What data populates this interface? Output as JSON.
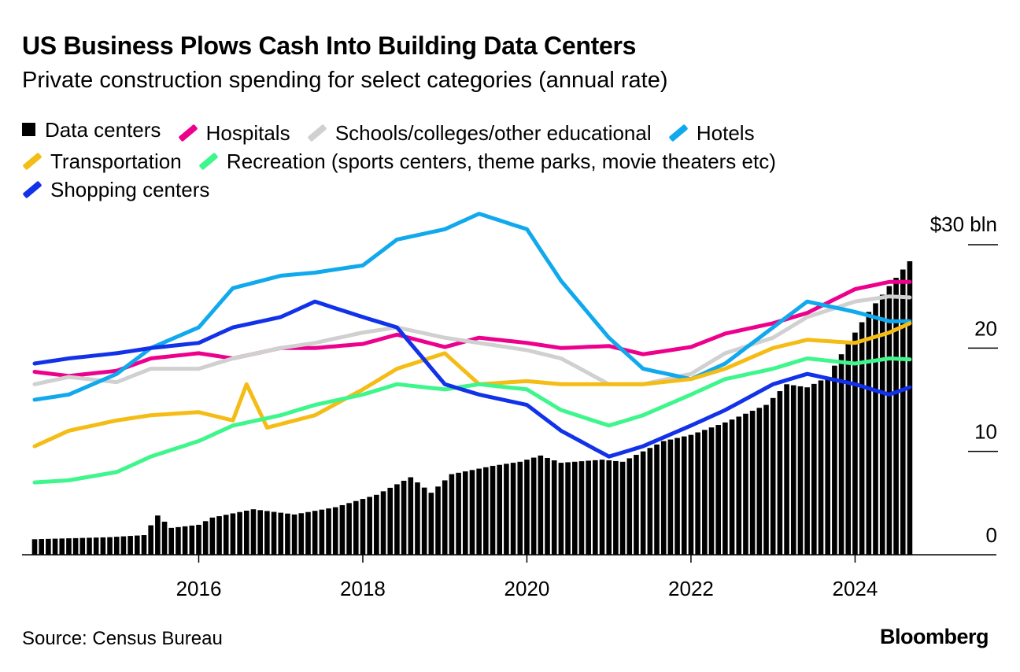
{
  "header": {
    "title": "US Business Plows Cash Into Building Data Centers",
    "subtitle": "Private construction spending for select categories (annual rate)"
  },
  "footer": {
    "source": "Source: Census Bureau",
    "brand": "Bloomberg"
  },
  "chart_data": {
    "type": "bar+line",
    "title": "US Business Plows Cash Into Building Data Centers",
    "subtitle": "Private construction spending for select categories (annual rate)",
    "ylabel_top": "$30 bln",
    "ylim": [
      0,
      30
    ],
    "y_ticks": [
      0,
      10,
      20
    ],
    "xlim": [
      "2014-01",
      "2024-12"
    ],
    "x_ticks": [
      "2016",
      "2018",
      "2020",
      "2022",
      "2024"
    ],
    "grid": false,
    "legend_position": "top-left",
    "bar_series": {
      "name": "Data centers",
      "color": "#000000",
      "anchors": [
        [
          "2014-01",
          1.5
        ],
        [
          "2014-12",
          1.7
        ],
        [
          "2015-05",
          1.9
        ],
        [
          "2015-07",
          3.8
        ],
        [
          "2015-09",
          2.6
        ],
        [
          "2016-01",
          2.9
        ],
        [
          "2016-03",
          3.6
        ],
        [
          "2016-09",
          4.4
        ],
        [
          "2017-03",
          3.9
        ],
        [
          "2017-09",
          4.6
        ],
        [
          "2018-03",
          5.8
        ],
        [
          "2018-08",
          7.5
        ],
        [
          "2018-11",
          6.0
        ],
        [
          "2019-02",
          7.8
        ],
        [
          "2019-08",
          8.6
        ],
        [
          "2019-12",
          9.0
        ],
        [
          "2020-03",
          9.6
        ],
        [
          "2020-06",
          8.9
        ],
        [
          "2020-12",
          9.2
        ],
        [
          "2021-03",
          9.0
        ],
        [
          "2021-06",
          10.0
        ],
        [
          "2021-09",
          11.0
        ],
        [
          "2022-01",
          11.6
        ],
        [
          "2022-06",
          12.8
        ],
        [
          "2022-12",
          14.5
        ],
        [
          "2023-03",
          16.5
        ],
        [
          "2023-06",
          16.2
        ],
        [
          "2023-09",
          17.2
        ],
        [
          "2023-12",
          20.5
        ],
        [
          "2024-03",
          23.5
        ],
        [
          "2024-06",
          26.0
        ],
        [
          "2024-09",
          28.4
        ]
      ]
    },
    "series": [
      {
        "name": "Hospitals",
        "color": "#ed008c",
        "anchors": [
          [
            "2014-01",
            17.7
          ],
          [
            "2014-06",
            17.3
          ],
          [
            "2015-01",
            17.8
          ],
          [
            "2015-06",
            19.0
          ],
          [
            "2016-01",
            19.5
          ],
          [
            "2016-06",
            19.0
          ],
          [
            "2017-01",
            20.0
          ],
          [
            "2017-06",
            20.0
          ],
          [
            "2018-01",
            20.4
          ],
          [
            "2018-06",
            21.3
          ],
          [
            "2019-01",
            20.1
          ],
          [
            "2019-06",
            21.0
          ],
          [
            "2020-01",
            20.5
          ],
          [
            "2020-06",
            20.0
          ],
          [
            "2021-01",
            20.2
          ],
          [
            "2021-06",
            19.4
          ],
          [
            "2022-01",
            20.1
          ],
          [
            "2022-06",
            21.4
          ],
          [
            "2023-01",
            22.4
          ],
          [
            "2023-06",
            23.4
          ],
          [
            "2024-01",
            25.7
          ],
          [
            "2024-06",
            26.4
          ],
          [
            "2024-09",
            26.4
          ]
        ]
      },
      {
        "name": "Schools/colleges/other educational",
        "color": "#d0d0d0",
        "anchors": [
          [
            "2014-01",
            16.5
          ],
          [
            "2014-06",
            17.2
          ],
          [
            "2015-01",
            16.7
          ],
          [
            "2015-06",
            18.0
          ],
          [
            "2016-01",
            18.0
          ],
          [
            "2016-06",
            19.0
          ],
          [
            "2017-01",
            20.0
          ],
          [
            "2017-06",
            20.5
          ],
          [
            "2018-01",
            21.5
          ],
          [
            "2018-06",
            22.0
          ],
          [
            "2019-01",
            21.0
          ],
          [
            "2019-06",
            20.5
          ],
          [
            "2020-01",
            19.8
          ],
          [
            "2020-06",
            19.0
          ],
          [
            "2021-01",
            16.5
          ],
          [
            "2021-06",
            16.5
          ],
          [
            "2022-01",
            17.5
          ],
          [
            "2022-06",
            19.5
          ],
          [
            "2023-01",
            21.0
          ],
          [
            "2023-06",
            23.0
          ],
          [
            "2024-01",
            24.5
          ],
          [
            "2024-06",
            25.0
          ],
          [
            "2024-09",
            24.9
          ]
        ]
      },
      {
        "name": "Hotels",
        "color": "#11a9ed",
        "anchors": [
          [
            "2014-01",
            15.0
          ],
          [
            "2014-06",
            15.5
          ],
          [
            "2015-01",
            17.5
          ],
          [
            "2015-06",
            20.0
          ],
          [
            "2016-01",
            22.0
          ],
          [
            "2016-06",
            25.8
          ],
          [
            "2017-01",
            27.0
          ],
          [
            "2017-06",
            27.3
          ],
          [
            "2018-01",
            28.0
          ],
          [
            "2018-06",
            30.5
          ],
          [
            "2019-01",
            31.5
          ],
          [
            "2019-06",
            33.0
          ],
          [
            "2020-01",
            31.5
          ],
          [
            "2020-06",
            26.5
          ],
          [
            "2021-01",
            21.0
          ],
          [
            "2021-06",
            18.0
          ],
          [
            "2022-01",
            17.0
          ],
          [
            "2022-06",
            18.5
          ],
          [
            "2023-01",
            22.0
          ],
          [
            "2023-06",
            24.5
          ],
          [
            "2024-01",
            23.5
          ],
          [
            "2024-06",
            22.6
          ],
          [
            "2024-09",
            22.6
          ]
        ]
      },
      {
        "name": "Transportation",
        "color": "#f4bc15",
        "anchors": [
          [
            "2014-01",
            10.5
          ],
          [
            "2014-06",
            12.0
          ],
          [
            "2015-01",
            13.0
          ],
          [
            "2015-06",
            13.5
          ],
          [
            "2016-01",
            13.8
          ],
          [
            "2016-06",
            13.0
          ],
          [
            "2016-08",
            16.5
          ],
          [
            "2016-11",
            12.3
          ],
          [
            "2017-06",
            13.5
          ],
          [
            "2018-01",
            16.0
          ],
          [
            "2018-06",
            18.0
          ],
          [
            "2019-01",
            19.5
          ],
          [
            "2019-06",
            16.5
          ],
          [
            "2020-01",
            16.8
          ],
          [
            "2020-06",
            16.5
          ],
          [
            "2021-01",
            16.5
          ],
          [
            "2021-06",
            16.5
          ],
          [
            "2022-01",
            17.0
          ],
          [
            "2022-06",
            18.0
          ],
          [
            "2023-01",
            20.0
          ],
          [
            "2023-06",
            20.8
          ],
          [
            "2024-01",
            20.5
          ],
          [
            "2024-06",
            21.5
          ],
          [
            "2024-09",
            22.4
          ]
        ]
      },
      {
        "name": "Recreation (sports centers, theme parks, movie theaters etc)",
        "color": "#3ef68c",
        "anchors": [
          [
            "2014-01",
            7.0
          ],
          [
            "2014-06",
            7.2
          ],
          [
            "2015-01",
            8.0
          ],
          [
            "2015-06",
            9.5
          ],
          [
            "2016-01",
            11.0
          ],
          [
            "2016-06",
            12.5
          ],
          [
            "2017-01",
            13.5
          ],
          [
            "2017-06",
            14.5
          ],
          [
            "2018-01",
            15.5
          ],
          [
            "2018-06",
            16.5
          ],
          [
            "2019-01",
            16.0
          ],
          [
            "2019-06",
            16.5
          ],
          [
            "2020-01",
            16.0
          ],
          [
            "2020-06",
            14.0
          ],
          [
            "2021-01",
            12.5
          ],
          [
            "2021-06",
            13.5
          ],
          [
            "2022-01",
            15.5
          ],
          [
            "2022-06",
            17.0
          ],
          [
            "2023-01",
            18.0
          ],
          [
            "2023-06",
            19.0
          ],
          [
            "2024-01",
            18.5
          ],
          [
            "2024-06",
            19.0
          ],
          [
            "2024-09",
            18.9
          ]
        ]
      },
      {
        "name": "Shopping centers",
        "color": "#1132e9",
        "anchors": [
          [
            "2014-01",
            18.5
          ],
          [
            "2014-06",
            19.0
          ],
          [
            "2015-01",
            19.5
          ],
          [
            "2015-06",
            20.0
          ],
          [
            "2016-01",
            20.5
          ],
          [
            "2016-06",
            22.0
          ],
          [
            "2017-01",
            23.0
          ],
          [
            "2017-06",
            24.5
          ],
          [
            "2018-01",
            23.0
          ],
          [
            "2018-06",
            22.0
          ],
          [
            "2019-01",
            16.5
          ],
          [
            "2019-06",
            15.5
          ],
          [
            "2020-01",
            14.5
          ],
          [
            "2020-06",
            12.0
          ],
          [
            "2021-01",
            9.5
          ],
          [
            "2021-06",
            10.5
          ],
          [
            "2022-01",
            12.5
          ],
          [
            "2022-06",
            14.0
          ],
          [
            "2023-01",
            16.5
          ],
          [
            "2023-06",
            17.5
          ],
          [
            "2024-01",
            16.5
          ],
          [
            "2024-06",
            15.5
          ],
          [
            "2024-09",
            16.2
          ]
        ]
      }
    ]
  }
}
